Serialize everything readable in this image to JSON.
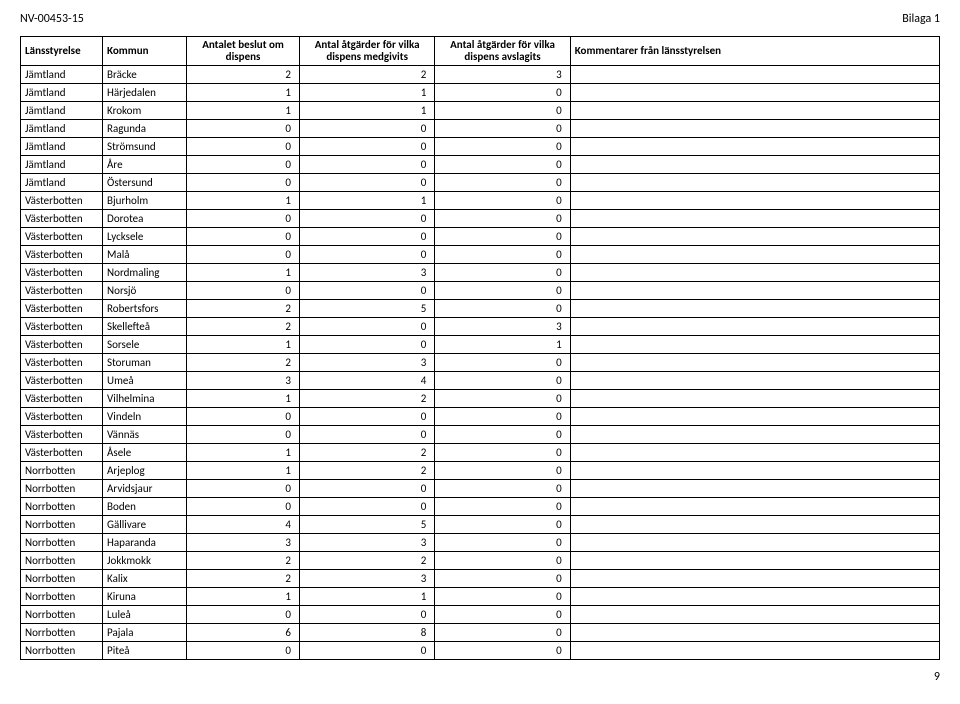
{
  "doc": {
    "doc_id": "NV-00453-15",
    "attachment": "Bilaga 1",
    "page_number": "9"
  },
  "table": {
    "headers": {
      "lansstyrelse": "Länsstyrelse",
      "kommun": "Kommun",
      "antalet_beslut": "Antalet beslut om dispens",
      "atgarder_medgivits": "Antal åtgärder för vilka dispens medgivits",
      "atgarder_avslagits": "Antal åtgärder för vilka dispens avslagits",
      "kommentarer": "Kommentarer från länsstyrelsen"
    },
    "rows": [
      {
        "lan": "Jämtland",
        "kommun": "Bräcke",
        "c2": 2,
        "c3": 2,
        "c4": 3,
        "c5": ""
      },
      {
        "lan": "Jämtland",
        "kommun": "Härjedalen",
        "c2": 1,
        "c3": 1,
        "c4": 0,
        "c5": ""
      },
      {
        "lan": "Jämtland",
        "kommun": "Krokom",
        "c2": 1,
        "c3": 1,
        "c4": 0,
        "c5": ""
      },
      {
        "lan": "Jämtland",
        "kommun": "Ragunda",
        "c2": 0,
        "c3": 0,
        "c4": 0,
        "c5": ""
      },
      {
        "lan": "Jämtland",
        "kommun": "Strömsund",
        "c2": 0,
        "c3": 0,
        "c4": 0,
        "c5": ""
      },
      {
        "lan": "Jämtland",
        "kommun": "Åre",
        "c2": 0,
        "c3": 0,
        "c4": 0,
        "c5": ""
      },
      {
        "lan": "Jämtland",
        "kommun": "Östersund",
        "c2": 0,
        "c3": 0,
        "c4": 0,
        "c5": ""
      },
      {
        "lan": "Västerbotten",
        "kommun": "Bjurholm",
        "c2": 1,
        "c3": 1,
        "c4": 0,
        "c5": ""
      },
      {
        "lan": "Västerbotten",
        "kommun": "Dorotea",
        "c2": 0,
        "c3": 0,
        "c4": 0,
        "c5": ""
      },
      {
        "lan": "Västerbotten",
        "kommun": "Lycksele",
        "c2": 0,
        "c3": 0,
        "c4": 0,
        "c5": ""
      },
      {
        "lan": "Västerbotten",
        "kommun": "Malå",
        "c2": 0,
        "c3": 0,
        "c4": 0,
        "c5": ""
      },
      {
        "lan": "Västerbotten",
        "kommun": "Nordmaling",
        "c2": 1,
        "c3": 3,
        "c4": 0,
        "c5": ""
      },
      {
        "lan": "Västerbotten",
        "kommun": "Norsjö",
        "c2": 0,
        "c3": 0,
        "c4": 0,
        "c5": ""
      },
      {
        "lan": "Västerbotten",
        "kommun": "Robertsfors",
        "c2": 2,
        "c3": 5,
        "c4": 0,
        "c5": ""
      },
      {
        "lan": "Västerbotten",
        "kommun": "Skellefteå",
        "c2": 2,
        "c3": 0,
        "c4": 3,
        "c5": ""
      },
      {
        "lan": "Västerbotten",
        "kommun": "Sorsele",
        "c2": 1,
        "c3": 0,
        "c4": 1,
        "c5": ""
      },
      {
        "lan": "Västerbotten",
        "kommun": "Storuman",
        "c2": 2,
        "c3": 3,
        "c4": 0,
        "c5": ""
      },
      {
        "lan": "Västerbotten",
        "kommun": "Umeå",
        "c2": 3,
        "c3": 4,
        "c4": 0,
        "c5": ""
      },
      {
        "lan": "Västerbotten",
        "kommun": "Vilhelmina",
        "c2": 1,
        "c3": 2,
        "c4": 0,
        "c5": ""
      },
      {
        "lan": "Västerbotten",
        "kommun": "Vindeln",
        "c2": 0,
        "c3": 0,
        "c4": 0,
        "c5": ""
      },
      {
        "lan": "Västerbotten",
        "kommun": "Vännäs",
        "c2": 0,
        "c3": 0,
        "c4": 0,
        "c5": ""
      },
      {
        "lan": "Västerbotten",
        "kommun": "Åsele",
        "c2": 1,
        "c3": 2,
        "c4": 0,
        "c5": ""
      },
      {
        "lan": "Norrbotten",
        "kommun": "Arjeplog",
        "c2": 1,
        "c3": 2,
        "c4": 0,
        "c5": ""
      },
      {
        "lan": "Norrbotten",
        "kommun": "Arvidsjaur",
        "c2": 0,
        "c3": 0,
        "c4": 0,
        "c5": ""
      },
      {
        "lan": "Norrbotten",
        "kommun": "Boden",
        "c2": 0,
        "c3": 0,
        "c4": 0,
        "c5": ""
      },
      {
        "lan": "Norrbotten",
        "kommun": "Gällivare",
        "c2": 4,
        "c3": 5,
        "c4": 0,
        "c5": ""
      },
      {
        "lan": "Norrbotten",
        "kommun": "Haparanda",
        "c2": 3,
        "c3": 3,
        "c4": 0,
        "c5": ""
      },
      {
        "lan": "Norrbotten",
        "kommun": "Jokkmokk",
        "c2": 2,
        "c3": 2,
        "c4": 0,
        "c5": ""
      },
      {
        "lan": "Norrbotten",
        "kommun": "Kalix",
        "c2": 2,
        "c3": 3,
        "c4": 0,
        "c5": ""
      },
      {
        "lan": "Norrbotten",
        "kommun": "Kiruna",
        "c2": 1,
        "c3": 1,
        "c4": 0,
        "c5": ""
      },
      {
        "lan": "Norrbotten",
        "kommun": "Luleå",
        "c2": 0,
        "c3": 0,
        "c4": 0,
        "c5": ""
      },
      {
        "lan": "Norrbotten",
        "kommun": "Pajala",
        "c2": 6,
        "c3": 8,
        "c4": 0,
        "c5": ""
      },
      {
        "lan": "Norrbotten",
        "kommun": "Piteå",
        "c2": 0,
        "c3": 0,
        "c4": 0,
        "c5": ""
      }
    ]
  }
}
